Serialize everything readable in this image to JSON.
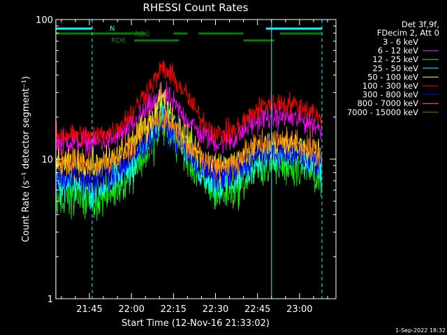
{
  "colors": {
    "background": "#000000",
    "axes": "#ffffff",
    "n_flag": "#00ffff",
    "rd_flag": "#008000"
  },
  "footer_date": "1-Sep-2022 18:32",
  "legend_header": [
    "Det 3f,9f,",
    "FDecim 2, Att 0"
  ],
  "flags": {
    "n_label": "N",
    "rd0_label": "RD0",
    "rd6_label": "RD6",
    "n_intervals": [
      [
        "21:33",
        "21:46"
      ],
      [
        "22:48",
        "23:08"
      ]
    ],
    "rd0_intervals": [
      [
        "21:33",
        "22:05"
      ],
      [
        "22:15",
        "22:20"
      ],
      [
        "22:24",
        "22:40"
      ],
      [
        "22:53",
        "23:08"
      ]
    ],
    "rd6_intervals": [
      [
        "22:01",
        "22:17"
      ],
      [
        "22:40",
        "22:51"
      ]
    ],
    "cyan_vlines_solid": [
      "21:33",
      "22:50"
    ],
    "cyan_vlines_dashed": [
      "21:46",
      "23:08"
    ]
  },
  "chart_data": {
    "type": "line",
    "title": "RHESSI Count Rates",
    "xlabel": "Start Time (12-Nov-16 21:33:02)",
    "ylabel": "Count Rate (s⁻¹ detector segment⁻¹)",
    "yscale": "log",
    "ylim": [
      1,
      100
    ],
    "xlim": [
      "21:33",
      "23:13"
    ],
    "yticks": [
      {
        "value": 1,
        "label": "1"
      },
      {
        "value": 10,
        "label": "10"
      },
      {
        "value": 100,
        "label": "100"
      }
    ],
    "xticks": [
      "21:45",
      "22:00",
      "22:15",
      "22:30",
      "22:45",
      "23:00"
    ],
    "legend_position": "right",
    "sample_times": [
      "21:33",
      "21:40",
      "21:47",
      "21:54",
      "22:00",
      "22:05",
      "22:09",
      "22:11",
      "22:14",
      "22:19",
      "22:25",
      "22:31",
      "22:37",
      "22:43",
      "22:48",
      "22:55",
      "23:00",
      "23:05",
      "23:08"
    ],
    "series": [
      {
        "name": "3 - 6 keV",
        "color": "#000000",
        "values": [
          6.5,
          7,
          6.5,
          8,
          10,
          13,
          16,
          19,
          17,
          13,
          9,
          7,
          7,
          9,
          11,
          11,
          10,
          9,
          8
        ]
      },
      {
        "name": "6 - 12 keV",
        "color": "#ff00ff",
        "values": [
          13,
          13.5,
          13,
          14,
          17,
          22,
          26,
          30,
          26,
          20,
          15,
          13,
          14,
          18,
          20,
          20,
          19,
          18,
          16
        ]
      },
      {
        "name": "12 - 25 keV",
        "color": "#00ff00",
        "values": [
          5.5,
          5.5,
          5,
          6,
          8,
          11,
          14,
          18,
          15,
          11,
          7,
          5.5,
          6,
          8,
          9,
          9,
          8.5,
          8,
          7
        ]
      },
      {
        "name": "25 - 50 keV",
        "color": "#00ffff",
        "values": [
          6.5,
          6.5,
          6,
          7,
          9,
          13,
          17,
          24,
          18,
          13,
          8,
          6.5,
          7,
          9,
          10.5,
          10.5,
          10,
          9,
          8
        ]
      },
      {
        "name": "50 - 100 keV",
        "color": "#ffff00",
        "values": [
          9,
          9,
          9,
          10,
          13,
          17,
          22,
          30,
          21,
          15,
          10,
          9,
          9,
          11,
          12.5,
          12.5,
          12,
          11,
          10
        ]
      },
      {
        "name": "100 - 300 keV",
        "color": "#ff0000",
        "values": [
          15,
          15,
          14.5,
          16,
          21,
          30,
          38,
          45,
          40,
          30,
          19,
          15,
          16,
          21,
          25,
          25,
          24,
          22,
          18
        ]
      },
      {
        "name": "300 - 800 keV",
        "color": "#0000ff",
        "values": [
          7.5,
          7.5,
          7,
          8,
          10,
          13,
          16,
          18,
          16,
          12,
          8.5,
          7.5,
          8,
          10,
          11,
          11,
          10.5,
          10,
          8.5
        ]
      },
      {
        "name": "800 - 7000 keV",
        "color": "#ff8000",
        "values": [
          9.5,
          9.5,
          9,
          10,
          12,
          16,
          19,
          20,
          18,
          14,
          10,
          9,
          9.5,
          12,
          13.5,
          13.5,
          13,
          12,
          10
        ]
      },
      {
        "name": "7000 - 15000 keV",
        "color": "#808000",
        "values": []
      }
    ]
  }
}
